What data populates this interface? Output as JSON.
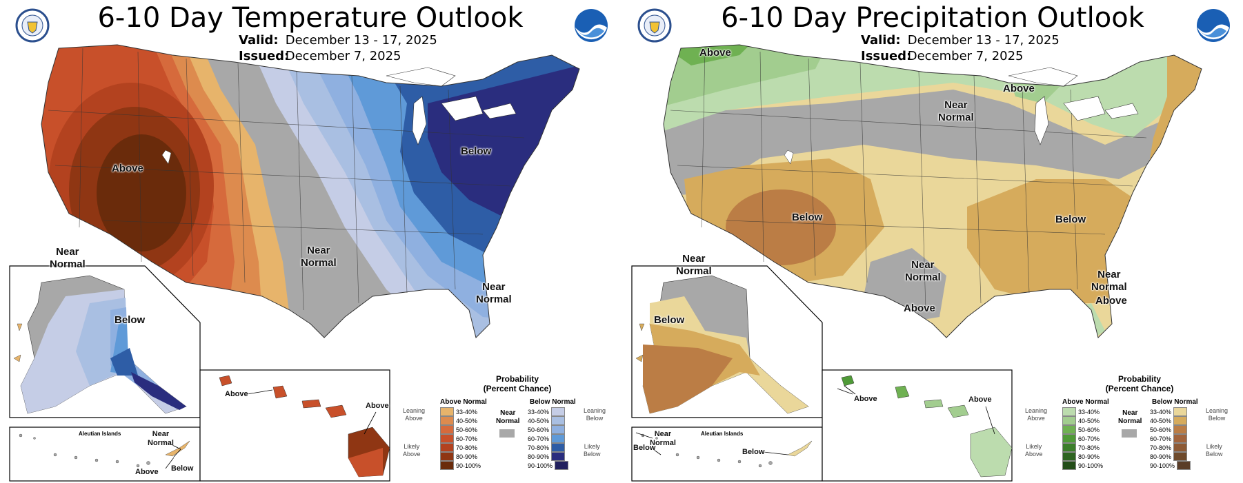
{
  "temperature": {
    "title": "6-10 Day Temperature Outlook",
    "valid_label": "Valid:",
    "valid_value": "December 13 - 17, 2025",
    "issued_label": "Issued:",
    "issued_value": "December 7, 2025",
    "labels": {
      "west_above": "Above",
      "east_below": "Below",
      "south_near": "Near\nNormal",
      "fl_near": "Near\nNormal",
      "ak_near": "Near\nNormal",
      "ak_below": "Below",
      "hi_above_1": "Above",
      "hi_above_2": "Above",
      "aleutian": "Aleutian Islands",
      "aleut_near": "Near\nNormal",
      "aleut_below": "Below",
      "aleut_above": "Above"
    },
    "legend": {
      "title": "Probability\n(Percent Chance)",
      "above_head": "Above Normal",
      "below_head": "Below Normal",
      "near_label": "Near\nNormal",
      "leaning_above": "Leaning\nAbove",
      "likely_above": "Likely\nAbove",
      "leaning_below": "Leaning\nBelow",
      "likely_below": "Likely\nBelow",
      "ranges": [
        "33-40%",
        "40-50%",
        "50-60%",
        "60-70%",
        "70-80%",
        "80-90%",
        "90-100%"
      ],
      "above_colors": [
        "#e7b46b",
        "#dd8b4e",
        "#d66a3c",
        "#c8502a",
        "#b3421f",
        "#8f3613",
        "#6a2b0b"
      ],
      "below_colors": [
        "#c5cde6",
        "#a9bfe2",
        "#8fb0e0",
        "#5f9ad8",
        "#2e5da6",
        "#2a2d7e",
        "#22205e"
      ]
    }
  },
  "precipitation": {
    "title": "6-10 Day Precipitation Outlook",
    "valid_label": "Valid:",
    "valid_value": "December 13 - 17, 2025",
    "issued_label": "Issued:",
    "issued_value": "December 7, 2025",
    "labels": {
      "nw_above": "Above",
      "gl_above": "Above",
      "central_near": "Near\nNormal",
      "sw_below": "Below",
      "se_below": "Below",
      "tx_near": "Near\nNormal",
      "tx_above": "Above",
      "fl_near": "Near\nNormal",
      "fl_above": "Above",
      "ak_near": "Near\nNormal",
      "ak_below": "Below",
      "hi_above_1": "Above",
      "hi_above_2": "Above",
      "aleutian": "Aleutian Islands",
      "aleut_near": "Near\nNormal",
      "aleut_below_1": "Below",
      "aleut_below_2": "Below"
    },
    "legend": {
      "title": "Probability\n(Percent Chance)",
      "above_head": "Above Normal",
      "below_head": "Below Normal",
      "near_label": "Near\nNormal",
      "leaning_above": "Leaning\nAbove",
      "likely_above": "Likely\nAbove",
      "leaning_below": "Leaning\nBelow",
      "likely_below": "Likely\nBelow",
      "ranges": [
        "33-40%",
        "40-50%",
        "50-60%",
        "60-70%",
        "70-80%",
        "80-90%",
        "90-100%"
      ],
      "above_colors": [
        "#bcdcae",
        "#a2cd8f",
        "#6fb152",
        "#4f9a37",
        "#3b7e2a",
        "#2e6521",
        "#234d19"
      ],
      "below_colors": [
        "#ead79a",
        "#d6ab5c",
        "#bb7d45",
        "#a2643c",
        "#8d5a35",
        "#6e4a2b",
        "#5a3d28"
      ]
    },
    "near_color": "#a8a8a8"
  }
}
